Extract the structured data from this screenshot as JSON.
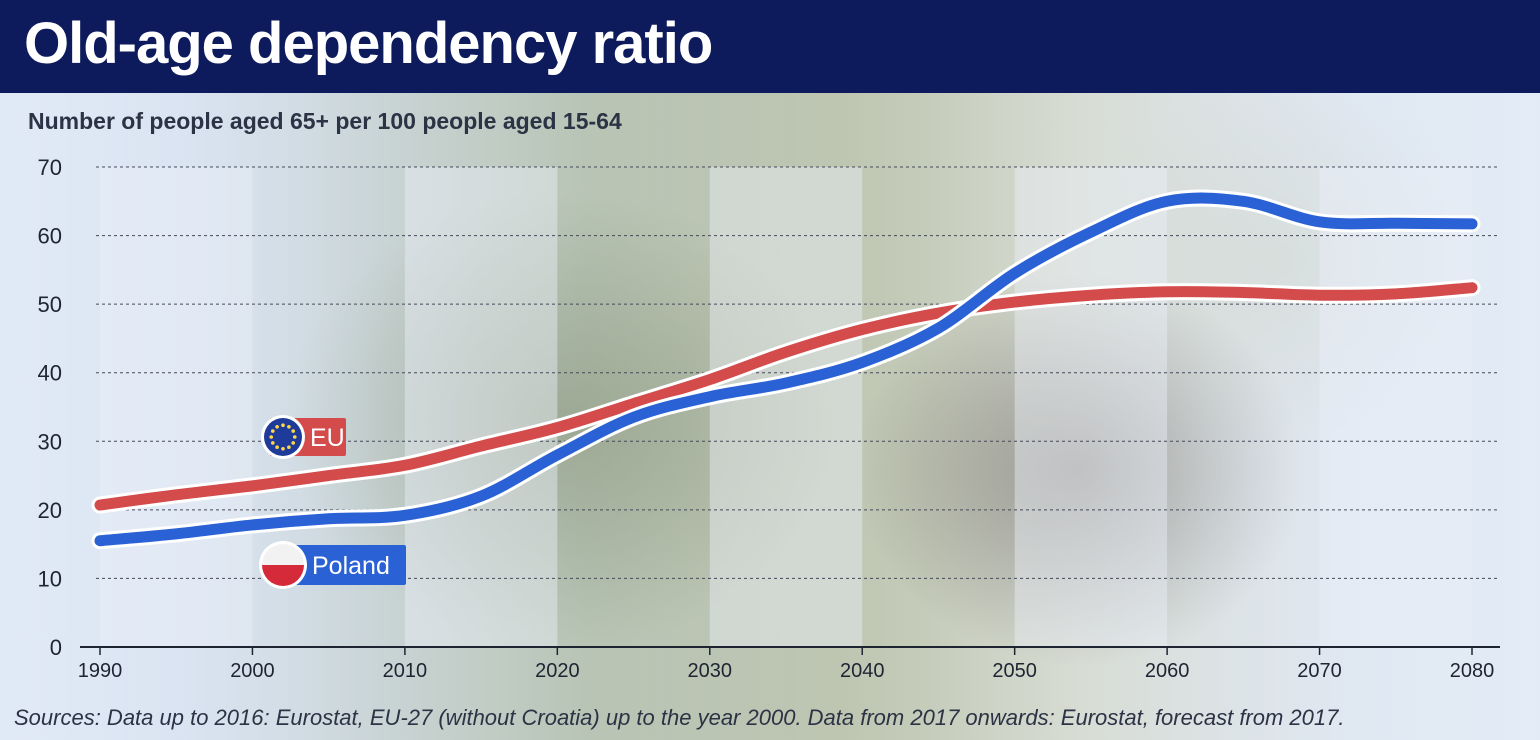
{
  "header": {
    "title": "Old-age dependency ratio",
    "subtitle": "Number of people aged 65+ per 100 people aged 15-64",
    "source": "Sources: Data up to 2016: Eurostat, EU-27 (without Croatia) up to the year 2000. Data from 2017 onwards: Eurostat, forecast from 2017."
  },
  "colors": {
    "header_bg": "#0d1a5c",
    "eu": "#d44b4b",
    "poland": "#2a62d6",
    "band": "#eaf0f8"
  },
  "chart_data": {
    "type": "line",
    "title": "Old-age dependency ratio",
    "subtitle": "Number of people aged 65+ per 100 people aged 15-64",
    "xlim": [
      1990,
      2080
    ],
    "ylim": [
      0,
      70
    ],
    "xticks": [
      1990,
      2000,
      2010,
      2020,
      2030,
      2040,
      2050,
      2060,
      2070,
      2080
    ],
    "yticks": [
      0,
      10,
      20,
      30,
      40,
      50,
      60,
      70
    ],
    "grid": "horizontal-dotted",
    "x": [
      1990,
      1995,
      2000,
      2005,
      2010,
      2015,
      2020,
      2025,
      2030,
      2035,
      2040,
      2045,
      2050,
      2055,
      2060,
      2065,
      2070,
      2075,
      2080
    ],
    "series": [
      {
        "name": "EU",
        "label_icon": "eu-flag-icon",
        "values": [
          20.7,
          22.2,
          23.5,
          25.0,
          26.5,
          29.3,
          32.0,
          35.5,
          39.0,
          43.0,
          46.3,
          48.7,
          50.3,
          51.3,
          51.8,
          51.7,
          51.3,
          51.5,
          52.4
        ]
      },
      {
        "name": "Poland",
        "label_icon": "poland-flag-icon",
        "values": [
          15.5,
          16.5,
          17.8,
          18.7,
          19.2,
          22.0,
          28.0,
          33.5,
          36.5,
          38.5,
          41.5,
          46.5,
          54.5,
          60.5,
          65.0,
          65.0,
          62.0,
          61.8,
          61.7
        ]
      }
    ]
  }
}
